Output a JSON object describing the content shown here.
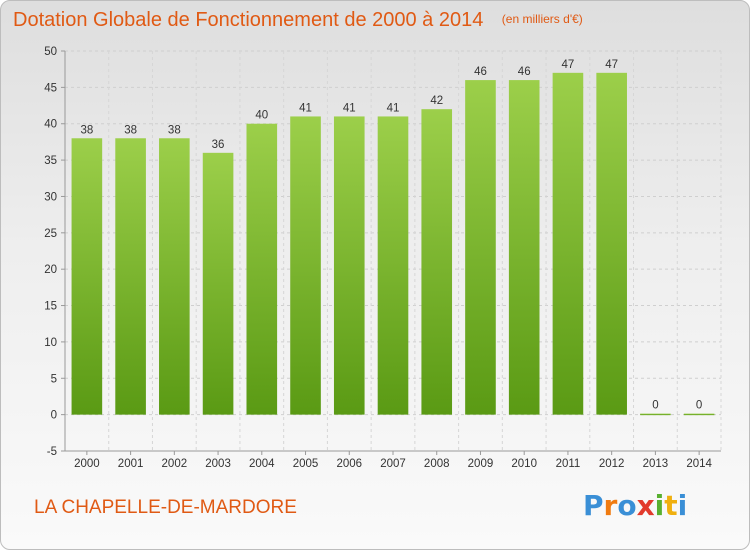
{
  "header": {
    "title": "Dotation Globale de Fonctionnement de 2000 à 2014",
    "unit": "(en milliers d'€)"
  },
  "footer": {
    "commune": "LA CHAPELLE-DE-MARDORE",
    "logo_text": "Proxiti",
    "logo_colors": [
      "#3a8fd6",
      "#f07b10",
      "#3a8fd6",
      "#e23a2c",
      "#58b030",
      "#f0b010",
      "#3a8fd6"
    ]
  },
  "colors": {
    "bar_top": "#9ccf4a",
    "bar_bottom": "#5a9a14",
    "text_accent": "#e05a14"
  },
  "chart_data": {
    "type": "bar",
    "title": "Dotation Globale de Fonctionnement de 2000 à 2014",
    "subtitle": "(en milliers d'€)",
    "xlabel": "",
    "ylabel": "",
    "categories": [
      "2000",
      "2001",
      "2002",
      "2003",
      "2004",
      "2005",
      "2006",
      "2007",
      "2008",
      "2009",
      "2010",
      "2011",
      "2012",
      "2013",
      "2014"
    ],
    "values": [
      38,
      38,
      38,
      36,
      40,
      41,
      41,
      41,
      42,
      46,
      46,
      47,
      47,
      0,
      0
    ],
    "ylim": [
      -5,
      50
    ],
    "yticks": [
      -5,
      0,
      5,
      10,
      15,
      20,
      25,
      30,
      35,
      40,
      45,
      50
    ],
    "grid": true,
    "legend": "none"
  }
}
